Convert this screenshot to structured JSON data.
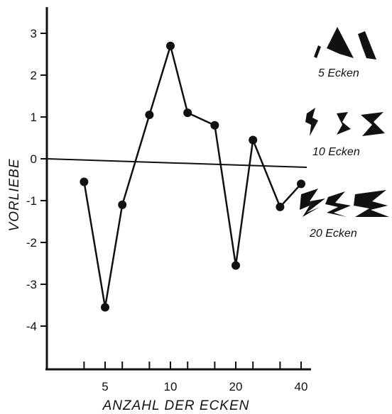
{
  "chart_data": {
    "type": "line",
    "xlabel": "ANZAHL DER ECKEN",
    "ylabel": "VORLIEBE",
    "ylim": [
      -5,
      3.5
    ],
    "yticks": [
      3,
      2,
      1,
      0,
      -1,
      -2,
      -3,
      -4
    ],
    "ytick_labels": [
      "3",
      "2",
      "1",
      "0",
      "-1",
      "-2",
      "-3",
      "-4"
    ],
    "xtick_labels": [
      "5",
      "10",
      "20",
      "40"
    ],
    "x_scale": "log",
    "x": [
      4,
      5,
      6,
      8,
      10,
      12,
      16,
      20,
      24,
      32,
      40
    ],
    "series": [
      {
        "values": [
          -0.55,
          -3.55,
          -1.1,
          1.05,
          2.7,
          1.1,
          0.8,
          -2.55,
          0.45,
          -1.15,
          -0.6
        ]
      }
    ],
    "zero_line": true,
    "annotations": [
      "5 Ecken",
      "10 Ecken",
      "20 Ecken"
    ]
  },
  "colors": {
    "ink": "#111111",
    "background": "#ffffff"
  },
  "icons": [
    "polygon-5-corner-icons",
    "polygon-10-corner-icons",
    "polygon-20-corner-icons"
  ]
}
